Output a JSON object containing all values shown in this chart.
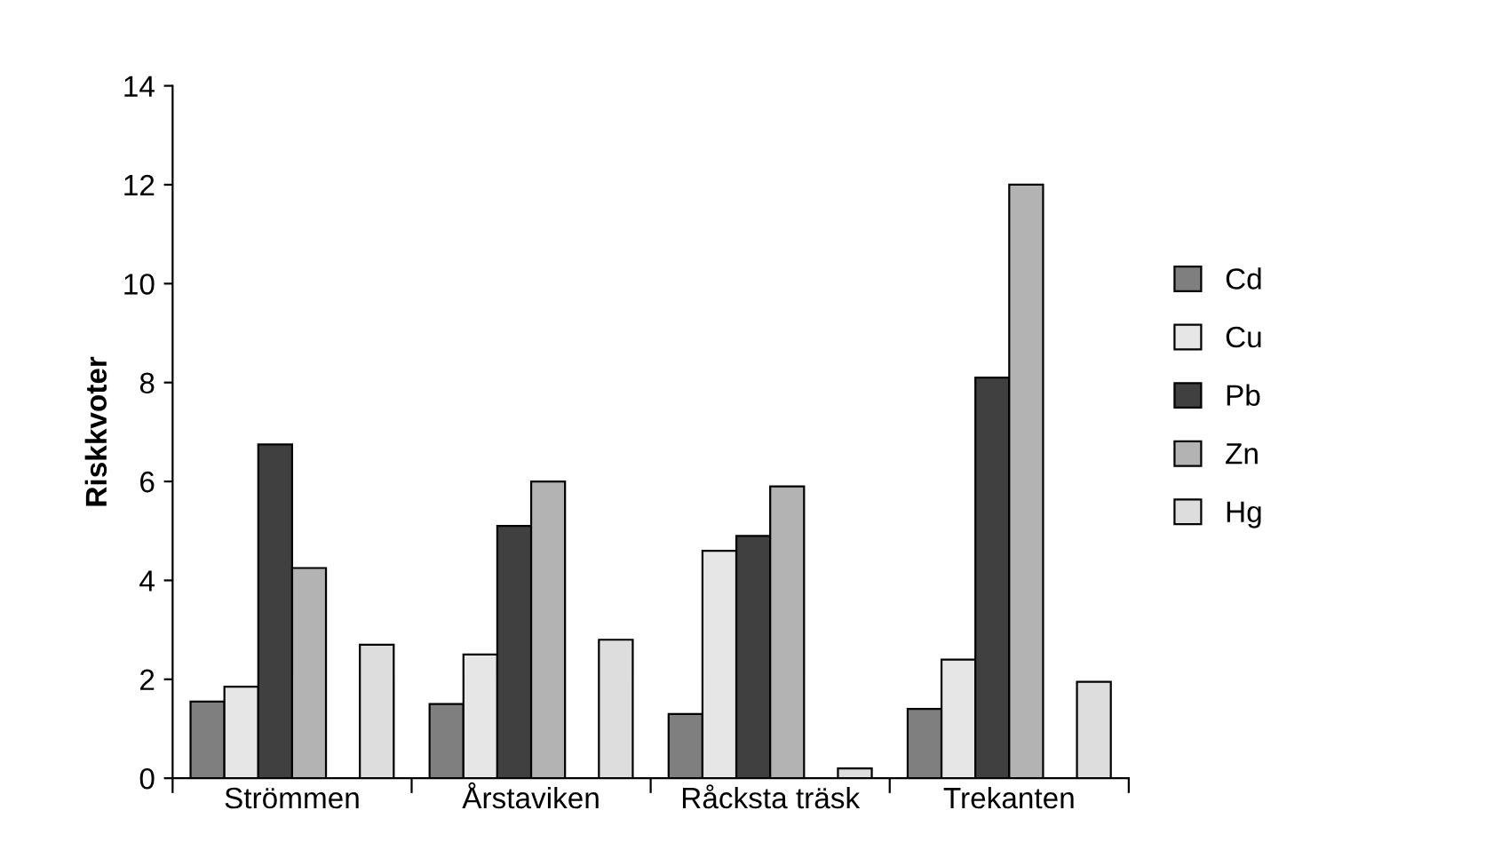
{
  "chart_data": {
    "type": "bar",
    "ylabel": "Riskkvoter",
    "categories": [
      "Strömmen",
      "Årstaviken",
      "Råcksta träsk",
      "Trekanten"
    ],
    "series": [
      {
        "name": "Cd",
        "color": "#7f7f7f",
        "values": [
          1.55,
          1.5,
          1.3,
          1.4
        ]
      },
      {
        "name": "Cu",
        "color": "#e6e6e6",
        "values": [
          1.85,
          2.5,
          4.6,
          2.4
        ]
      },
      {
        "name": "Pb",
        "color": "#404040",
        "values": [
          6.75,
          5.1,
          4.9,
          8.1
        ]
      },
      {
        "name": "Zn",
        "color": "#b3b3b3",
        "values": [
          4.25,
          6.0,
          5.9,
          12.0
        ]
      },
      {
        "name": "Hg",
        "color": "#dddddd",
        "values": [
          2.7,
          2.8,
          0.2,
          1.95
        ]
      }
    ],
    "ylim": [
      0,
      14
    ],
    "yticks": [
      0,
      2,
      4,
      6,
      8,
      10,
      12,
      14
    ],
    "grid": false,
    "legend": "right"
  }
}
